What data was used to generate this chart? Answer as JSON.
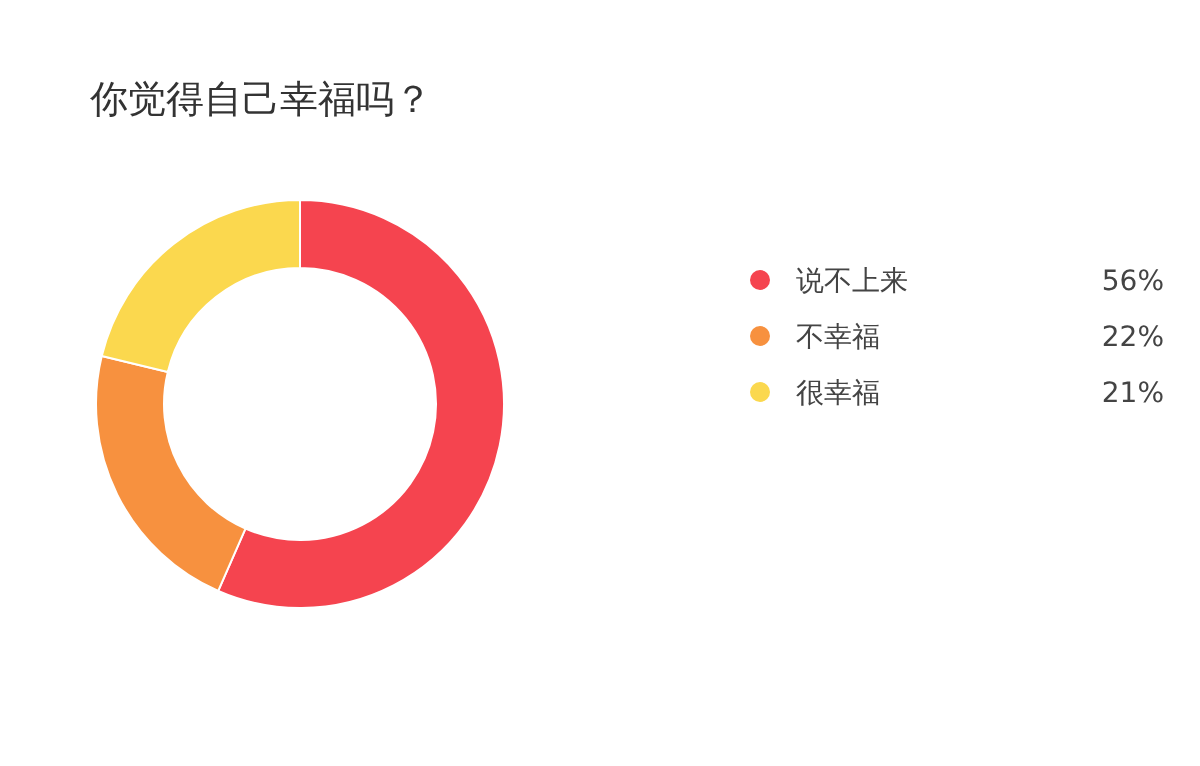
{
  "chart_data": {
    "type": "donut",
    "title": "你觉得自己幸福吗？",
    "categories": [
      "说不上来",
      "不幸福",
      "很幸福"
    ],
    "values": [
      56,
      22,
      21
    ],
    "colors": [
      "#f5444f",
      "#f7913f",
      "#fbd84e"
    ],
    "value_labels": [
      "56%",
      "22%",
      "21%"
    ],
    "legend": "right"
  }
}
